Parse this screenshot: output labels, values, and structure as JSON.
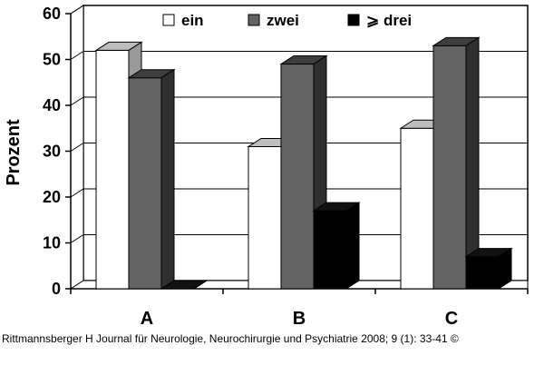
{
  "chart_data": {
    "type": "bar",
    "categories": [
      "A",
      "B",
      "C"
    ],
    "series": [
      {
        "name": "ein",
        "values": [
          52,
          31,
          35
        ]
      },
      {
        "name": "zwei",
        "values": [
          46,
          49,
          53
        ]
      },
      {
        "name": "⩾ drei",
        "values": [
          0,
          17,
          7
        ]
      }
    ],
    "ylabel": "Prozent",
    "xlabel": "",
    "ylim": [
      0,
      60
    ],
    "yticks": [
      "0",
      "10",
      "20",
      "30",
      "40",
      "50",
      "60"
    ],
    "grid": true,
    "legend_position": "top",
    "colors": {
      "ein": "#ffffff",
      "zwei": "#636363",
      "drei": "#000000"
    }
  },
  "caption": "Rittmannsberger H Journal für Neurologie, Neurochirurgie und Psychiatrie 2008; 9 (1): 33-41 ©"
}
